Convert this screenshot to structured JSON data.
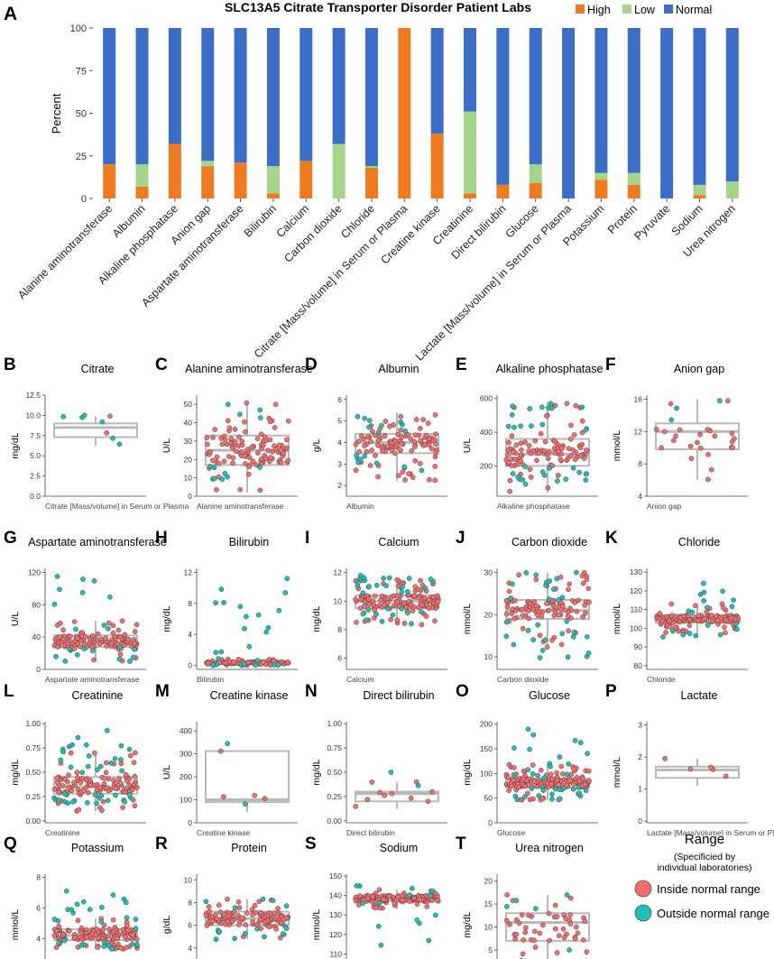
{
  "colors": {
    "high": "#ef7b21",
    "low": "#a5d58c",
    "normal": "#3c6ec8",
    "inside": "#f26d6d",
    "outside": "#1fbfb5",
    "box": "#b9b9b9",
    "axis": "#444444"
  },
  "panel_a": {
    "letter": "A",
    "title": "SLC13A5 Citrate Transporter Disorder Patient Labs",
    "ylabel": "Percent",
    "legend": [
      "High",
      "Low",
      "Normal"
    ]
  },
  "legend_b": {
    "title": "Range",
    "subtitle_line1": "(Specificied by",
    "subtitle_line2": "individual laboratories)",
    "inside": "Inside normal range",
    "outside": "Outside normal range"
  },
  "chart_data": [
    {
      "type": "bar",
      "stacked": true,
      "title": "SLC13A5 Citrate Transporter Disorder Patient Labs",
      "ylabel": "Percent",
      "ylim": [
        0,
        100
      ],
      "yticks": [
        0,
        25,
        50,
        75,
        100
      ],
      "categories": [
        "Alanine aminotransferase",
        "Albumin",
        "Alkaline phosphatase",
        "Anion gap",
        "Aspartate aminotransferase",
        "Bilirubin",
        "Calcium",
        "Carbon dioxide",
        "Chloride",
        "Citrate [Mass/volume] in Serum or Plasma",
        "Creatine kinase",
        "Creatinine",
        "Direct bilirubin",
        "Glucose",
        "Lactate [Mass/volume] in Serum or Plasma",
        "Potassium",
        "Protein",
        "Pyruvate",
        "Sodium",
        "Urea nitrogen"
      ],
      "series": [
        {
          "name": "High",
          "values": [
            20,
            7,
            32,
            19,
            21,
            3,
            22,
            0,
            18,
            100,
            38,
            3,
            8,
            9,
            0,
            11,
            8,
            0,
            2,
            0
          ]
        },
        {
          "name": "Low",
          "values": [
            0,
            13,
            0,
            3,
            0,
            16,
            0,
            32,
            1,
            0,
            0,
            48,
            0,
            11,
            0,
            4,
            7,
            0,
            6,
            10
          ]
        },
        {
          "name": "Normal",
          "values": [
            80,
            80,
            68,
            78,
            79,
            81,
            78,
            68,
            81,
            0,
            62,
            49,
            92,
            80,
            100,
            85,
            85,
            100,
            92,
            90
          ]
        }
      ]
    },
    {
      "type": "scatter",
      "panel": "B",
      "title": "Citrate",
      "ylabel": "mg/dL",
      "xlabel": "Citrate [Mass/volume] in Serum or Plasma",
      "ylim": [
        0,
        12.5
      ],
      "yticks": [
        "0.0",
        "2.5",
        "5.0",
        "7.5",
        "10.0",
        "12.5"
      ],
      "box": [
        6.2,
        7.3,
        8.5,
        9.0,
        9.9
      ],
      "n_inside": 2,
      "n_outside": 6,
      "spread_lo": 6.2,
      "spread_hi": 10.0
    },
    {
      "type": "scatter",
      "panel": "C",
      "title": "Alanine aminotransferase",
      "ylabel": "U/L",
      "xlabel": "Alanine aminotransferase",
      "ylim": [
        0,
        55
      ],
      "yticks": [
        "0",
        "10",
        "20",
        "30",
        "40",
        "50"
      ],
      "box": [
        2,
        17,
        25,
        33,
        51
      ],
      "n_inside": 110,
      "n_outside": 12,
      "spread_lo": 8,
      "spread_hi": 50
    },
    {
      "type": "scatter",
      "panel": "D",
      "title": "Albumin",
      "ylabel": "g/L",
      "xlabel": "Albumin",
      "ylim": [
        1.5,
        6.2
      ],
      "yticks": [
        "2",
        "3",
        "4",
        "5",
        "6"
      ],
      "box": [
        2.2,
        3.5,
        4.0,
        4.4,
        5.4
      ],
      "n_inside": 105,
      "n_outside": 18,
      "spread_lo": 2.6,
      "spread_hi": 5.2
    },
    {
      "type": "scatter",
      "panel": "E",
      "title": "Alkaline phosphatase",
      "ylabel": "U/L",
      "xlabel": "Alkaline phosphatase",
      "ylim": [
        20,
        620
      ],
      "yticks": [
        "200",
        "400",
        "600"
      ],
      "box": [
        40,
        200,
        270,
        360,
        580
      ],
      "n_inside": 100,
      "n_outside": 30,
      "spread_lo": 60,
      "spread_hi": 570
    },
    {
      "type": "scatter",
      "panel": "F",
      "title": "Anion gap",
      "ylabel": "mmol/L",
      "xlabel": "Anion gap",
      "ylim": [
        4,
        16.5
      ],
      "yticks": [
        "4",
        "8",
        "12",
        "16"
      ],
      "box": [
        6,
        9.8,
        12,
        13,
        16
      ],
      "n_inside": 24,
      "n_outside": 3,
      "spread_lo": 6,
      "spread_hi": 15.8
    },
    {
      "type": "scatter",
      "panel": "G",
      "title": "Aspartate aminotransferase",
      "ylabel": "U/L",
      "xlabel": "Aspartate aminotransferase",
      "ylim": [
        0,
        125
      ],
      "yticks": [
        "0",
        "40",
        "80",
        "120"
      ],
      "box": [
        10,
        28,
        34,
        42,
        60
      ],
      "n_inside": 125,
      "n_outside": 22,
      "spread_lo": 10,
      "spread_hi": 115
    },
    {
      "type": "scatter",
      "panel": "H",
      "title": "Bilirubin",
      "ylabel": "mg/dL",
      "xlabel": "Bilirubin",
      "ylim": [
        -0.5,
        12.5
      ],
      "yticks": [
        "0",
        "4",
        "8",
        "12"
      ],
      "box": [
        0,
        0.2,
        0.3,
        0.5,
        0.8
      ],
      "n_inside": 95,
      "n_outside": 25,
      "spread_lo": 0,
      "spread_hi": 11.2
    },
    {
      "type": "scatter",
      "panel": "I",
      "title": "Calcium",
      "ylabel": "mg/dL",
      "xlabel": "Calcium",
      "ylim": [
        5.2,
        12.3
      ],
      "yticks": [
        "6",
        "8",
        "10",
        "12"
      ],
      "box": [
        8.3,
        9.5,
        10.0,
        10.4,
        11.5
      ],
      "n_inside": 140,
      "n_outside": 30,
      "spread_lo": 8.3,
      "spread_hi": 11.8
    },
    {
      "type": "scatter",
      "panel": "J",
      "title": "Carbon dioxide",
      "ylabel": "mmol/L",
      "xlabel": "Carbon dioxide",
      "ylim": [
        7,
        31
      ],
      "yticks": [
        "10",
        "20",
        "30"
      ],
      "box": [
        12,
        19,
        21,
        23.5,
        30
      ],
      "n_inside": 100,
      "n_outside": 30,
      "spread_lo": 9,
      "spread_hi": 30
    },
    {
      "type": "scatter",
      "panel": "K",
      "title": "Chloride",
      "ylabel": "mmol/L",
      "xlabel": "Chloride",
      "ylim": [
        78,
        132
      ],
      "yticks": [
        "80",
        "90",
        "100",
        "110",
        "120",
        "130"
      ],
      "box": [
        97,
        103,
        105,
        107,
        113
      ],
      "n_inside": 140,
      "n_outside": 20,
      "spread_lo": 95,
      "spread_hi": 124
    },
    {
      "type": "scatter",
      "panel": "L",
      "title": "Creatinine",
      "ylabel": "mg/dL",
      "xlabel": "Creatinine",
      "ylim": [
        -0.02,
        1.02
      ],
      "yticks": [
        "0.00",
        "0.25",
        "0.50",
        "0.75",
        "1.00"
      ],
      "box": [
        0.1,
        0.28,
        0.35,
        0.45,
        0.7
      ],
      "n_inside": 110,
      "n_outside": 40,
      "spread_lo": 0.17,
      "spread_hi": 0.93
    },
    {
      "type": "scatter",
      "panel": "M",
      "title": "Creatine kinase",
      "ylabel": "U/L",
      "xlabel": "Creatine kinase",
      "ylim": [
        0,
        440
      ],
      "yticks": [
        "0",
        "100",
        "200",
        "300",
        "400"
      ],
      "box": [
        45,
        90,
        100,
        312,
        312
      ],
      "n_inside": 4,
      "n_outside": 2,
      "spread_lo": 80,
      "spread_hi": 345
    },
    {
      "type": "scatter",
      "panel": "N",
      "title": "Direct bilirubin",
      "ylabel": "mg/dL",
      "xlabel": "Direct bilirubin",
      "ylim": [
        -0.02,
        1.02
      ],
      "yticks": [
        "0.00",
        "0.25",
        "0.50",
        "0.75",
        "1.00"
      ],
      "box": [
        0.12,
        0.2,
        0.28,
        0.3,
        0.4
      ],
      "n_inside": 10,
      "n_outside": 2,
      "spread_lo": 0.13,
      "spread_hi": 0.5
    },
    {
      "type": "scatter",
      "panel": "O",
      "title": "Glucose",
      "ylabel": "mg/dL",
      "xlabel": "Glucose",
      "ylim": [
        0,
        205
      ],
      "yticks": [
        "0",
        "50",
        "100",
        "150",
        "200"
      ],
      "box": [
        45,
        72,
        80,
        90,
        118
      ],
      "n_inside": 170,
      "n_outside": 35,
      "spread_lo": 45,
      "spread_hi": 190
    },
    {
      "type": "scatter",
      "panel": "P",
      "title": "Lactate",
      "ylabel": "mmol/L",
      "xlabel": "Lactate [Mass/volume] in Serum or Plasma",
      "ylim": [
        -0.05,
        3.1
      ],
      "yticks": [
        "0",
        "1",
        "2",
        "3"
      ],
      "box": [
        1.1,
        1.35,
        1.6,
        1.7,
        1.95
      ],
      "n_inside": 5,
      "n_outside": 0,
      "spread_lo": 1.1,
      "spread_hi": 1.95
    },
    {
      "type": "scatter",
      "panel": "Q",
      "title": "Potassium",
      "ylabel": "mmol/L",
      "xlabel": "Potassium",
      "ylim": [
        1.6,
        8.2
      ],
      "yticks": [
        "2",
        "4",
        "6",
        "8"
      ],
      "box": [
        3.3,
        3.9,
        4.2,
        4.6,
        5.3
      ],
      "n_inside": 140,
      "n_outside": 30,
      "spread_lo": 3.3,
      "spread_hi": 7.1
    },
    {
      "type": "scatter",
      "panel": "R",
      "title": "Protein",
      "ylabel": "g/dL",
      "xlabel": "Protein",
      "ylim": [
        1.6,
        10.5
      ],
      "yticks": [
        "2",
        "4",
        "6",
        "8",
        "10"
      ],
      "box": [
        4.8,
        6.0,
        6.6,
        7.2,
        8.3
      ],
      "n_inside": 120,
      "n_outside": 15,
      "spread_lo": 4.6,
      "spread_hi": 8.3
    },
    {
      "type": "scatter",
      "panel": "S",
      "title": "Sodium",
      "ylabel": "mmol/L",
      "xlabel": "Sodium",
      "ylim": [
        99,
        151
      ],
      "yticks": [
        "100",
        "110",
        "120",
        "130",
        "140",
        "150"
      ],
      "box": [
        133,
        137,
        138,
        140,
        143
      ],
      "n_inside": 140,
      "n_outside": 14,
      "spread_lo": 114,
      "spread_hi": 145
    },
    {
      "type": "scatter",
      "panel": "T",
      "title": "Urea nitrogen",
      "ylabel": "mg/dL",
      "xlabel": "Urea nitrogen",
      "ylim": [
        -0.5,
        21.5
      ],
      "yticks": [
        "0",
        "5",
        "10",
        "15",
        "20"
      ],
      "box": [
        2,
        7,
        11,
        13,
        17
      ],
      "n_inside": 50,
      "n_outside": 5,
      "spread_lo": 3,
      "spread_hi": 17
    }
  ]
}
